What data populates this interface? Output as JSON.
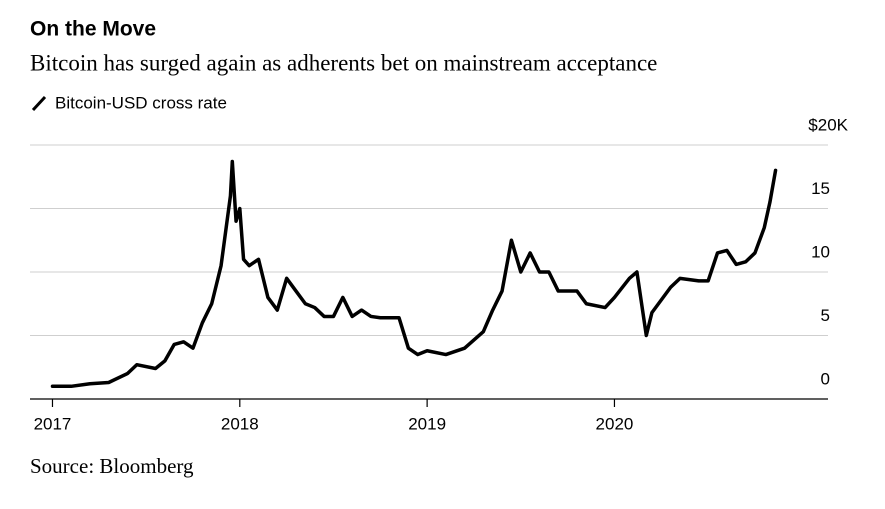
{
  "chart_data": {
    "type": "line",
    "title": "On the Move",
    "subtitle": "Bitcoin has surged again as adherents bet on mainstream acceptance",
    "source": "Source: Bloomberg",
    "x": [
      2017.0,
      2017.1,
      2017.2,
      2017.3,
      2017.4,
      2017.45,
      2017.55,
      2017.6,
      2017.65,
      2017.7,
      2017.75,
      2017.8,
      2017.85,
      2017.9,
      2017.95,
      2017.96,
      2017.98,
      2018.0,
      2018.02,
      2018.05,
      2018.1,
      2018.15,
      2018.2,
      2018.25,
      2018.3,
      2018.35,
      2018.4,
      2018.45,
      2018.5,
      2018.55,
      2018.6,
      2018.65,
      2018.7,
      2018.75,
      2018.85,
      2018.9,
      2018.95,
      2019.0,
      2019.1,
      2019.2,
      2019.3,
      2019.35,
      2019.4,
      2019.45,
      2019.5,
      2019.55,
      2019.6,
      2019.65,
      2019.7,
      2019.8,
      2019.85,
      2019.95,
      2020.0,
      2020.08,
      2020.12,
      2020.17,
      2020.2,
      2020.3,
      2020.35,
      2020.45,
      2020.5,
      2020.55,
      2020.6,
      2020.65,
      2020.7,
      2020.75,
      2020.8,
      2020.83,
      2020.86
    ],
    "series": [
      {
        "name": "Bitcoin-USD cross rate",
        "color": "#000000",
        "values": [
          1.0,
          1.0,
          1.2,
          1.3,
          2.0,
          2.7,
          2.4,
          3.0,
          4.3,
          4.5,
          4.0,
          6.0,
          7.5,
          10.5,
          16,
          18.7,
          14,
          15,
          11,
          10.5,
          11,
          8,
          7,
          9.5,
          8.5,
          7.5,
          7.2,
          6.5,
          6.5,
          8.0,
          6.5,
          7.0,
          6.5,
          6.4,
          6.4,
          4.0,
          3.5,
          3.8,
          3.5,
          4.0,
          5.3,
          7.0,
          8.5,
          12.5,
          10,
          11.5,
          10,
          10,
          8.5,
          8.5,
          7.5,
          7.2,
          8,
          9.5,
          10,
          5.0,
          6.8,
          8.8,
          9.5,
          9.3,
          9.3,
          11.5,
          11.7,
          10.6,
          10.8,
          11.5,
          13.5,
          15.5,
          18
        ]
      }
    ],
    "xlim": [
      2016.88,
      2021.14
    ],
    "xticks": [
      2017,
      2018,
      2019,
      2020
    ],
    "ylim": [
      0,
      20
    ],
    "yticks": [
      0,
      5,
      10,
      15,
      {
        "value": 20,
        "label": "$20K"
      }
    ],
    "grid": true
  }
}
